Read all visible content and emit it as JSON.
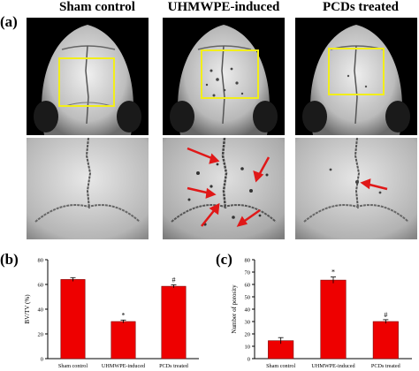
{
  "figure": {
    "panel_a_label": "(a)",
    "panel_b_label": "(b)",
    "panel_c_label": "(c)",
    "columns": [
      "Sham control",
      "UHMWPE-induced",
      "PCDs treated"
    ]
  },
  "colors": {
    "bar": "#ee0000",
    "roi_box": "#f2ee1a",
    "arrow": "#e01818",
    "micro_bg": "#000000"
  },
  "chart_data": [
    {
      "type": "bar",
      "categories": [
        "Sham control",
        "UHMWPE-induced",
        "PCDs treated"
      ],
      "values": [
        64,
        30,
        58.5
      ],
      "errors": [
        1.5,
        1.2,
        1.2
      ],
      "annotations": [
        "",
        "*",
        "#"
      ],
      "title": "",
      "xlabel": "",
      "ylabel": "BV/TV (%)",
      "ylim": [
        0,
        80
      ],
      "yticks": [
        "0",
        "20",
        "40",
        "60",
        "80"
      ],
      "grid": false
    },
    {
      "type": "bar",
      "categories": [
        "Sham control",
        "UHMWPE-induced",
        "PCDs treated"
      ],
      "values": [
        14.5,
        63.5,
        30
      ],
      "errors": [
        2.5,
        2.5,
        1.5
      ],
      "annotations": [
        "",
        "*",
        "#"
      ],
      "title": "",
      "xlabel": "",
      "ylabel": "Number of porosity",
      "ylim": [
        0,
        80
      ],
      "yticks": [
        "0",
        "10",
        "20",
        "30",
        "40",
        "50",
        "60",
        "70",
        "80"
      ],
      "grid": false
    }
  ]
}
